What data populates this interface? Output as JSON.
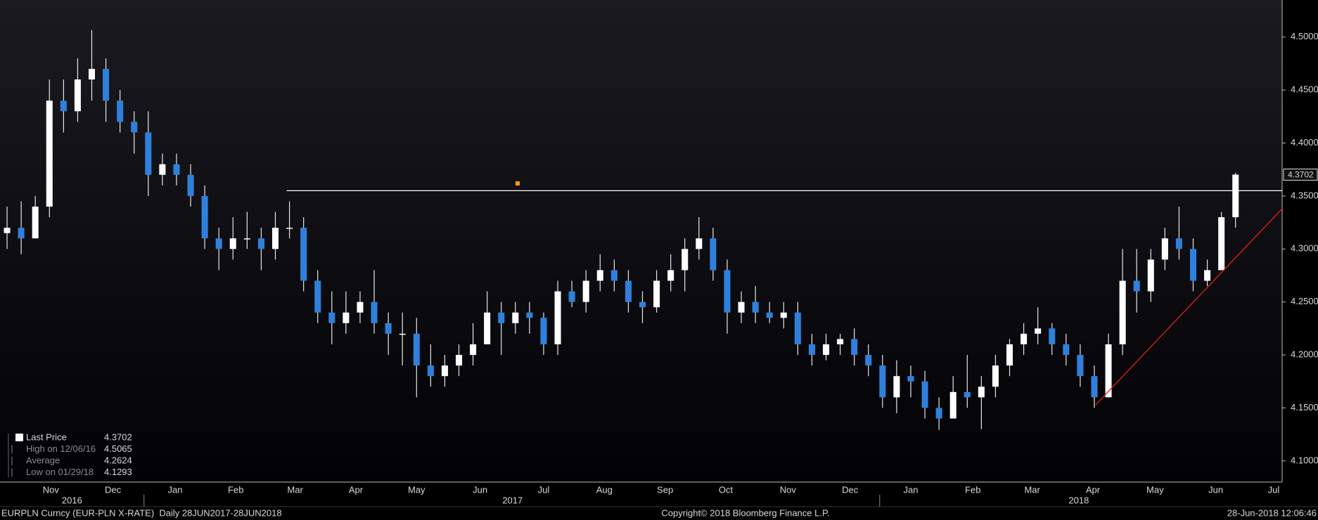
{
  "chart_data": {
    "type": "candlestick",
    "up_color": "#ffffff",
    "down_color": "#2f80dc",
    "xlim": [
      0,
      90.8
    ],
    "ylim": [
      4.08,
      4.535
    ],
    "yticks": [
      {
        "value": 4.1,
        "label": "4.1000"
      },
      {
        "value": 4.15,
        "label": "4.1500"
      },
      {
        "value": 4.2,
        "label": "4.2000"
      },
      {
        "value": 4.25,
        "label": "4.2500"
      },
      {
        "value": 4.3,
        "label": "4.3000"
      },
      {
        "value": 4.35,
        "label": "4.3500"
      },
      {
        "value": 4.4,
        "label": "4.4000"
      },
      {
        "value": 4.45,
        "label": "4.4500"
      },
      {
        "value": 4.5,
        "label": "4.5000"
      }
    ],
    "xticks": [
      {
        "value": 3.6,
        "label": "Nov"
      },
      {
        "value": 8.0,
        "label": "Dec"
      },
      {
        "value": 12.4,
        "label": "Jan"
      },
      {
        "value": 16.7,
        "label": "Feb"
      },
      {
        "value": 20.9,
        "label": "Mar"
      },
      {
        "value": 25.2,
        "label": "Apr"
      },
      {
        "value": 29.5,
        "label": "May"
      },
      {
        "value": 34.0,
        "label": "Jun"
      },
      {
        "value": 38.5,
        "label": "Jul"
      },
      {
        "value": 42.8,
        "label": "Aug"
      },
      {
        "value": 47.1,
        "label": "Sep"
      },
      {
        "value": 51.4,
        "label": "Oct"
      },
      {
        "value": 55.8,
        "label": "Nov"
      },
      {
        "value": 60.2,
        "label": "Dec"
      },
      {
        "value": 64.5,
        "label": "Jan"
      },
      {
        "value": 68.9,
        "label": "Feb"
      },
      {
        "value": 73.1,
        "label": "Mar"
      },
      {
        "value": 77.4,
        "label": "Apr"
      },
      {
        "value": 81.8,
        "label": "May"
      },
      {
        "value": 86.1,
        "label": "Jun"
      },
      {
        "value": 90.2,
        "label": "Jul"
      }
    ],
    "years": [
      {
        "value": 5.1,
        "label": "2016"
      },
      {
        "value": 36.3,
        "label": "2017"
      },
      {
        "value": 76.4,
        "label": "2018"
      }
    ],
    "year_dividers": [
      10.2,
      62.3
    ],
    "open": [
      4.315,
      4.32,
      4.31,
      4.34,
      4.44,
      4.43,
      4.46,
      4.47,
      4.44,
      4.42,
      4.41,
      4.37,
      4.38,
      4.37,
      4.35,
      4.31,
      4.3,
      4.31,
      4.31,
      4.3,
      4.32,
      4.32,
      4.27,
      4.24,
      4.23,
      4.24,
      4.25,
      4.23,
      4.22,
      4.22,
      4.19,
      4.18,
      4.19,
      4.2,
      4.21,
      4.24,
      4.23,
      4.24,
      4.235,
      4.21,
      4.26,
      4.25,
      4.27,
      4.28,
      4.27,
      4.25,
      4.245,
      4.27,
      4.28,
      4.3,
      4.31,
      4.28,
      4.24,
      4.25,
      4.24,
      4.235,
      4.24,
      4.21,
      4.2,
      4.21,
      4.215,
      4.2,
      4.19,
      4.16,
      4.18,
      4.175,
      4.15,
      4.14,
      4.165,
      4.16,
      4.17,
      4.19,
      4.21,
      4.22,
      4.225,
      4.21,
      4.2,
      4.18,
      4.16,
      4.21,
      4.27,
      4.26,
      4.29,
      4.31,
      4.3,
      4.27,
      4.28,
      4.33
    ],
    "high": [
      4.34,
      4.345,
      4.35,
      4.46,
      4.46,
      4.48,
      4.5065,
      4.48,
      4.45,
      4.43,
      4.43,
      4.39,
      4.39,
      4.38,
      4.36,
      4.32,
      4.33,
      4.335,
      4.32,
      4.335,
      4.345,
      4.33,
      4.28,
      4.26,
      4.26,
      4.26,
      4.28,
      4.24,
      4.24,
      4.235,
      4.21,
      4.2,
      4.21,
      4.23,
      4.26,
      4.25,
      4.25,
      4.25,
      4.24,
      4.27,
      4.27,
      4.28,
      4.295,
      4.29,
      4.28,
      4.26,
      4.28,
      4.295,
      4.31,
      4.33,
      4.32,
      4.29,
      4.26,
      4.265,
      4.25,
      4.25,
      4.25,
      4.22,
      4.22,
      4.22,
      4.225,
      4.21,
      4.2,
      4.195,
      4.19,
      4.185,
      4.16,
      4.18,
      4.2,
      4.18,
      4.2,
      4.215,
      4.23,
      4.245,
      4.23,
      4.22,
      4.21,
      4.19,
      4.22,
      4.3,
      4.3,
      4.3,
      4.32,
      4.34,
      4.31,
      4.29,
      4.335,
      4.372
    ],
    "low": [
      4.3,
      4.295,
      4.31,
      4.33,
      4.41,
      4.42,
      4.44,
      4.42,
      4.41,
      4.39,
      4.35,
      4.36,
      4.36,
      4.34,
      4.3,
      4.28,
      4.29,
      4.3,
      4.28,
      4.29,
      4.31,
      4.26,
      4.23,
      4.21,
      4.22,
      4.23,
      4.22,
      4.2,
      4.19,
      4.16,
      4.17,
      4.17,
      4.18,
      4.19,
      4.21,
      4.2,
      4.22,
      4.22,
      4.2,
      4.2,
      4.245,
      4.24,
      4.26,
      4.26,
      4.24,
      4.23,
      4.24,
      4.26,
      4.26,
      4.29,
      4.27,
      4.22,
      4.23,
      4.23,
      4.23,
      4.225,
      4.2,
      4.19,
      4.195,
      4.2,
      4.19,
      4.18,
      4.15,
      4.145,
      4.16,
      4.14,
      4.1293,
      4.14,
      4.15,
      4.13,
      4.16,
      4.18,
      4.2,
      4.21,
      4.2,
      4.19,
      4.17,
      4.15,
      4.16,
      4.2,
      4.24,
      4.25,
      4.28,
      4.29,
      4.26,
      4.265,
      4.28,
      4.32
    ],
    "close": [
      4.32,
      4.31,
      4.34,
      4.44,
      4.43,
      4.46,
      4.47,
      4.44,
      4.42,
      4.41,
      4.37,
      4.38,
      4.37,
      4.35,
      4.31,
      4.3,
      4.31,
      4.31,
      4.3,
      4.32,
      4.32,
      4.27,
      4.24,
      4.23,
      4.24,
      4.25,
      4.23,
      4.22,
      4.22,
      4.19,
      4.18,
      4.19,
      4.2,
      4.21,
      4.24,
      4.23,
      4.24,
      4.235,
      4.21,
      4.26,
      4.25,
      4.27,
      4.28,
      4.27,
      4.25,
      4.245,
      4.27,
      4.28,
      4.3,
      4.31,
      4.28,
      4.24,
      4.25,
      4.24,
      4.235,
      4.24,
      4.21,
      4.2,
      4.21,
      4.215,
      4.2,
      4.19,
      4.16,
      4.18,
      4.175,
      4.15,
      4.14,
      4.165,
      4.16,
      4.17,
      4.19,
      4.21,
      4.22,
      4.225,
      4.21,
      4.2,
      4.18,
      4.16,
      4.21,
      4.27,
      4.26,
      4.29,
      4.31,
      4.3,
      4.27,
      4.28,
      4.33,
      4.3702
    ],
    "lines": [
      {
        "color": "#ffffff",
        "x": [
          20.3,
          90.8
        ],
        "y": [
          4.355,
          4.355
        ]
      },
      {
        "color": "#e0201b",
        "x": [
          77.6,
          90.8
        ],
        "y": [
          4.153,
          4.338
        ]
      }
    ],
    "legend": [
      {
        "label": "Last Price",
        "value": 4.3702
      },
      {
        "label": "High on 12/06/16",
        "value": 4.5065
      },
      {
        "label": "Average",
        "value": 4.2624
      },
      {
        "label": "Low on 01/29/18",
        "value": 4.1293
      }
    ],
    "footer": {
      "left": "EURPLN Curncy (EUR-PLN X-RATE)  Daily 28JUN2017-28JUN2018",
      "center": "Copyright© 2018 Bloomberg Finance L.P.",
      "right": "28-Jun-2018 12:06:46"
    }
  }
}
